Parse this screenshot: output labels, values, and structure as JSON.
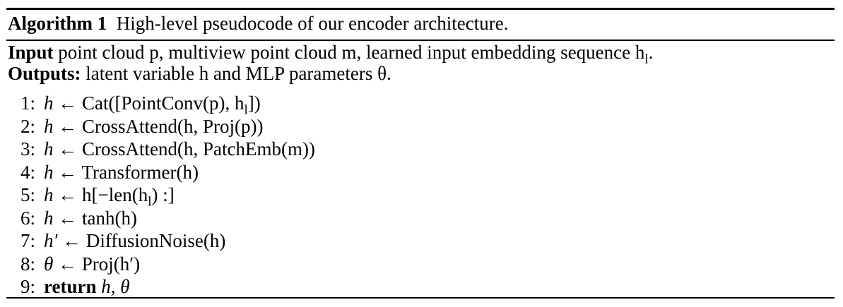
{
  "caption": {
    "label": "Algorithm 1",
    "text": "High-level pseudocode of our encoder architecture."
  },
  "io": {
    "input_label": "Input",
    "input_text": " point cloud p, multiview point cloud m, learned input embedding sequence h",
    "input_sub": "l",
    "input_end": ".",
    "output_label": "Outputs:",
    "output_text": " latent variable h and MLP parameters θ."
  },
  "steps": [
    {
      "num": "1:",
      "lhs": "h",
      "arrow": " ← ",
      "rhs": " Cat([PointConv(p), h",
      "sub": "l",
      "rhs_end": "])"
    },
    {
      "num": "2:",
      "lhs": "h",
      "arrow": " ← ",
      "rhs": "CrossAttend(h, Proj(p))"
    },
    {
      "num": "3:",
      "lhs": "h",
      "arrow": " ← ",
      "rhs": "CrossAttend(h, PatchEmb(m))"
    },
    {
      "num": "4:",
      "lhs": "h",
      "arrow": " ← ",
      "rhs": "Transformer(h)"
    },
    {
      "num": "5:",
      "lhs": "h",
      "arrow": " ← ",
      "rhs": "h[−len(h",
      "sub": "l",
      "rhs_end": ") :]"
    },
    {
      "num": "6:",
      "lhs": "h",
      "arrow": " ← ",
      "rhs": "tanh(h)"
    },
    {
      "num": "7:",
      "lhs": "h′",
      "arrow": " ← ",
      "rhs": "DiffusionNoise(h)"
    },
    {
      "num": "8:",
      "lhs": "θ",
      "arrow": " ← ",
      "rhs": "Proj(h′)"
    },
    {
      "num": "9:",
      "keyword": "return",
      "rhs": " h, θ"
    }
  ]
}
